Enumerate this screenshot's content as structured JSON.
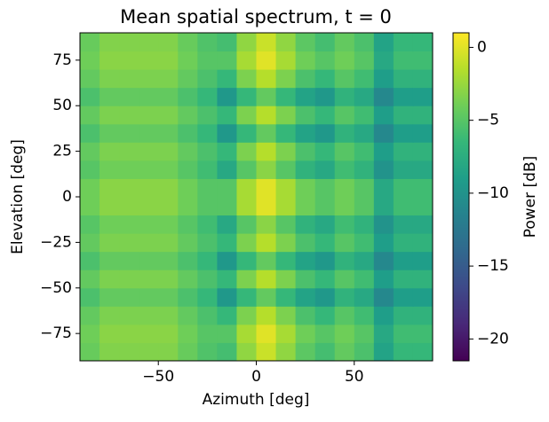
{
  "chart_data": {
    "type": "heatmap",
    "title": "Mean spatial spectrum, t = 0",
    "x_label": "Azimuth [deg]",
    "y_label": "Elevation [deg]",
    "colorbar_label": "Power [dB]",
    "x": [
      -85,
      -75,
      -65,
      -55,
      -45,
      -35,
      -25,
      -15,
      -5,
      5,
      15,
      25,
      35,
      45,
      55,
      65,
      75,
      85
    ],
    "y": [
      -85,
      -75,
      -65,
      -55,
      -45,
      -35,
      -25,
      -15,
      -5,
      5,
      15,
      25,
      35,
      45,
      55,
      65,
      75,
      85
    ],
    "values": [
      [
        -4.3,
        -3.3,
        -3.3,
        -3.3,
        -3.3,
        -4.3,
        -5.3,
        -5.8,
        -2.8,
        -0.8,
        -2.8,
        -4.8,
        -5.8,
        -4.5,
        -5.5,
        -8.5,
        -6.5,
        -6.5
      ],
      [
        -4,
        -3,
        -3,
        -3,
        -3,
        -4,
        -5,
        -5,
        -2,
        0,
        -2,
        -4,
        -5,
        -4,
        -5,
        -8,
        -6,
        -6
      ],
      [
        -4.5,
        -3.5,
        -3.5,
        -3.5,
        -3.5,
        -4.5,
        -5.5,
        -6.5,
        -3.5,
        -1.5,
        -3.5,
        -5.5,
        -6.5,
        -5,
        -6,
        -9,
        -7,
        -7
      ],
      [
        -5.5,
        -4.5,
        -4.5,
        -4.5,
        -4.5,
        -5.5,
        -6.5,
        -9.5,
        -6.5,
        -4.5,
        -6.5,
        -8.5,
        -9.5,
        -7,
        -8,
        -11,
        -9,
        -9
      ],
      [
        -4.5,
        -3.5,
        -3.5,
        -3.5,
        -3.5,
        -4.5,
        -5.5,
        -6.5,
        -3.5,
        -1.5,
        -3.5,
        -5.5,
        -6.5,
        -5,
        -6,
        -9,
        -7,
        -7
      ],
      [
        -5.5,
        -4.5,
        -4.5,
        -4.5,
        -4.5,
        -5.5,
        -6.5,
        -9.5,
        -6.5,
        -4.5,
        -6.5,
        -8.5,
        -9.5,
        -7,
        -8,
        -11,
        -9,
        -9
      ],
      [
        -4.5,
        -3.5,
        -3.5,
        -3.5,
        -3.5,
        -4.5,
        -5.5,
        -6.5,
        -3.5,
        -1.5,
        -3.5,
        -5.5,
        -6.5,
        -5,
        -6,
        -9,
        -7,
        -7
      ],
      [
        -5,
        -4,
        -4,
        -4,
        -4,
        -5,
        -6,
        -8,
        -5,
        -3,
        -5,
        -7,
        -8,
        -6,
        -7,
        -10,
        -8,
        -8
      ],
      [
        -4,
        -3,
        -3,
        -3,
        -3,
        -4,
        -5,
        -5,
        -2,
        0,
        -2,
        -4,
        -5,
        -4,
        -5,
        -8,
        -6,
        -6
      ],
      [
        -4,
        -3,
        -3,
        -3,
        -3,
        -4,
        -5,
        -5,
        -2,
        0,
        -2,
        -4,
        -5,
        -4,
        -5,
        -8,
        -6,
        -6
      ],
      [
        -5,
        -4,
        -4,
        -4,
        -4,
        -5,
        -6,
        -8,
        -5,
        -3,
        -5,
        -7,
        -8,
        -6,
        -7,
        -10,
        -8,
        -8
      ],
      [
        -4.5,
        -3.5,
        -3.5,
        -3.5,
        -3.5,
        -4.5,
        -5.5,
        -6.5,
        -3.5,
        -1.5,
        -3.5,
        -5.5,
        -6.5,
        -5,
        -6,
        -9,
        -7,
        -7
      ],
      [
        -5.5,
        -4.5,
        -4.5,
        -4.5,
        -4.5,
        -5.5,
        -6.5,
        -9.5,
        -6.5,
        -4.5,
        -6.5,
        -8.5,
        -9.5,
        -7,
        -8,
        -11,
        -9,
        -9
      ],
      [
        -4.5,
        -3.5,
        -3.5,
        -3.5,
        -3.5,
        -4.5,
        -5.5,
        -6.5,
        -3.5,
        -1.5,
        -3.5,
        -5.5,
        -6.5,
        -5,
        -6,
        -9,
        -7,
        -7
      ],
      [
        -5.5,
        -4.5,
        -4.5,
        -4.5,
        -4.5,
        -5.5,
        -6.5,
        -9.5,
        -6.5,
        -4.5,
        -6.5,
        -8.5,
        -9.5,
        -7,
        -8,
        -11,
        -9,
        -9
      ],
      [
        -4.5,
        -3.5,
        -3.5,
        -3.5,
        -3.5,
        -4.5,
        -5.5,
        -6.5,
        -3.5,
        -1.5,
        -3.5,
        -5.5,
        -6.5,
        -5,
        -6,
        -9,
        -7,
        -7
      ],
      [
        -4,
        -3,
        -3,
        -3,
        -3,
        -4,
        -5,
        -5,
        -2,
        0,
        -2,
        -4,
        -5,
        -4,
        -5,
        -8,
        -6,
        -6
      ],
      [
        -4.3,
        -3.3,
        -3.3,
        -3.3,
        -3.3,
        -4.3,
        -5.3,
        -5.8,
        -2.8,
        -0.8,
        -2.8,
        -4.8,
        -5.8,
        -4.5,
        -5.5,
        -8.5,
        -6.5,
        -6.5
      ]
    ],
    "xlim": [
      -90,
      90
    ],
    "ylim": [
      -90,
      90
    ],
    "zlim": [
      -21.5,
      1
    ],
    "xticks": [
      {
        "value": -50,
        "label": "−50"
      },
      0,
      50
    ],
    "yticks": [
      {
        "value": -75,
        "label": "−75"
      },
      {
        "value": -50,
        "label": "−50"
      },
      {
        "value": -25,
        "label": "−25"
      },
      0,
      25,
      50,
      75
    ],
    "zticks": [
      {
        "value": -20,
        "label": "−20"
      },
      {
        "value": -15,
        "label": "−15"
      },
      {
        "value": -10,
        "label": "−10"
      },
      {
        "value": -5,
        "label": "−5"
      },
      0
    ],
    "colormap": [
      "#440154",
      "#482878",
      "#3e4989",
      "#31688e",
      "#26828e",
      "#1f9e89",
      "#35b779",
      "#6ece58",
      "#b5de2b",
      "#fde725"
    ]
  }
}
